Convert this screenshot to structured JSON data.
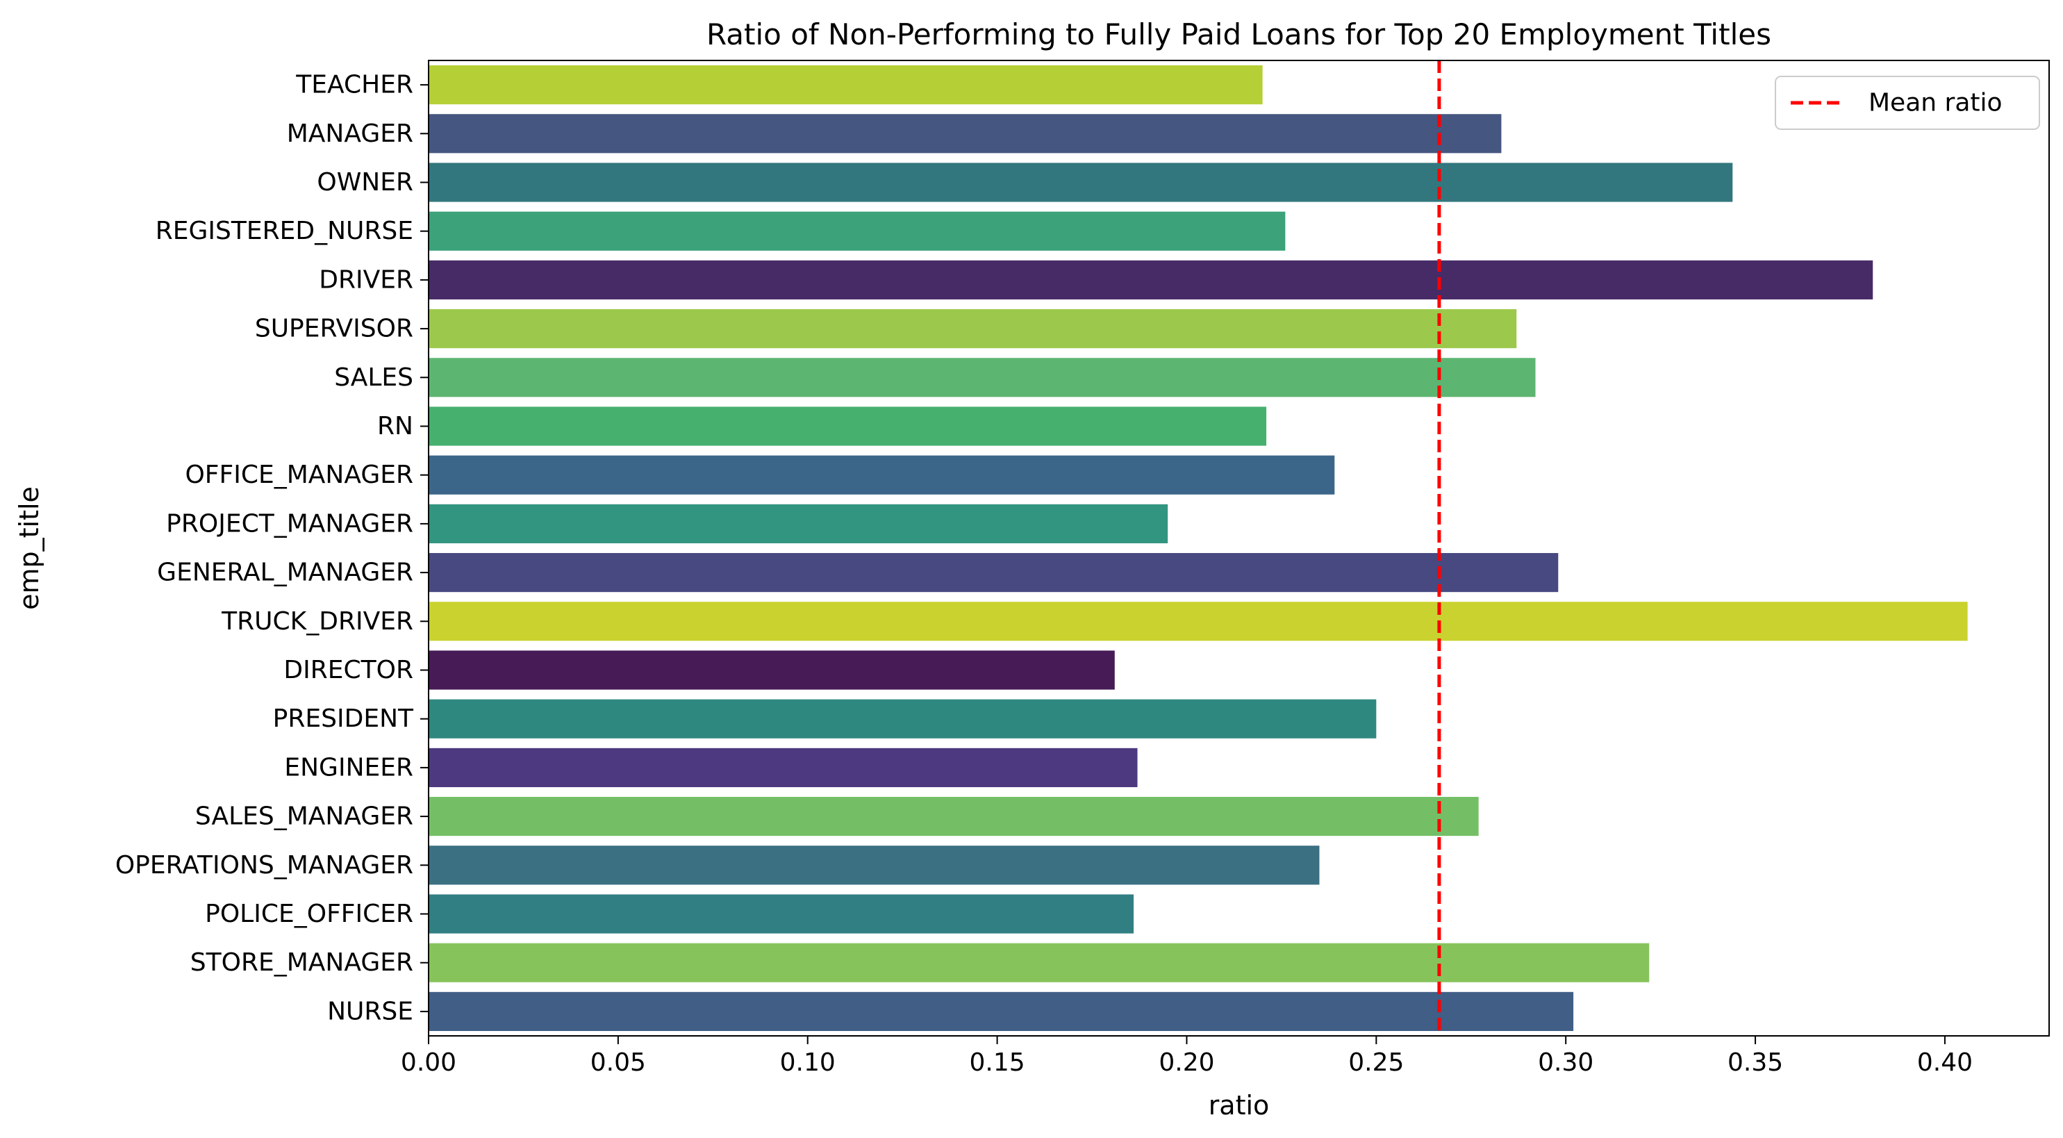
{
  "chart_data": {
    "type": "bar",
    "orientation": "horizontal",
    "title": "Ratio of Non-Performing to Fully Paid Loans for Top 20 Employment Titles",
    "xlabel": "ratio",
    "ylabel": "emp_title",
    "xlim": [
      0,
      0.4275
    ],
    "xticks": [
      0.0,
      0.05,
      0.1,
      0.15,
      0.2,
      0.25,
      0.3,
      0.35,
      0.4
    ],
    "xtick_labels": [
      "0.00",
      "0.05",
      "0.10",
      "0.15",
      "0.20",
      "0.25",
      "0.30",
      "0.35",
      "0.40"
    ],
    "grid": false,
    "categories": [
      "TEACHER",
      "MANAGER",
      "OWNER",
      "REGISTERED_NURSE",
      "DRIVER",
      "SUPERVISOR",
      "SALES",
      "RN",
      "OFFICE_MANAGER",
      "PROJECT_MANAGER",
      "GENERAL_MANAGER",
      "TRUCK_DRIVER",
      "DIRECTOR",
      "PRESIDENT",
      "ENGINEER",
      "SALES_MANAGER",
      "OPERATIONS_MANAGER",
      "POLICE_OFFICER",
      "STORE_MANAGER",
      "NURSE"
    ],
    "values": [
      0.22,
      0.283,
      0.344,
      0.226,
      0.381,
      0.287,
      0.292,
      0.221,
      0.239,
      0.195,
      0.298,
      0.406,
      0.181,
      0.25,
      0.187,
      0.277,
      0.235,
      0.186,
      0.322,
      0.302
    ],
    "colors": [
      "#b5cf36",
      "#455681",
      "#33777e",
      "#3ba27a",
      "#472b67",
      "#9cc94b",
      "#5db572",
      "#46b06f",
      "#3c6689",
      "#32957f",
      "#484981",
      "#cad22f",
      "#461b56",
      "#2f887f",
      "#4d3980",
      "#74bf66",
      "#3b7082",
      "#317f82",
      "#87c35b",
      "#415e86"
    ],
    "reference_line": {
      "label": "Mean ratio",
      "value": 0.2666,
      "color": "#ff0000",
      "style": "dashed"
    },
    "legend": {
      "placement": "top-right",
      "entries": [
        "Mean ratio"
      ]
    }
  }
}
